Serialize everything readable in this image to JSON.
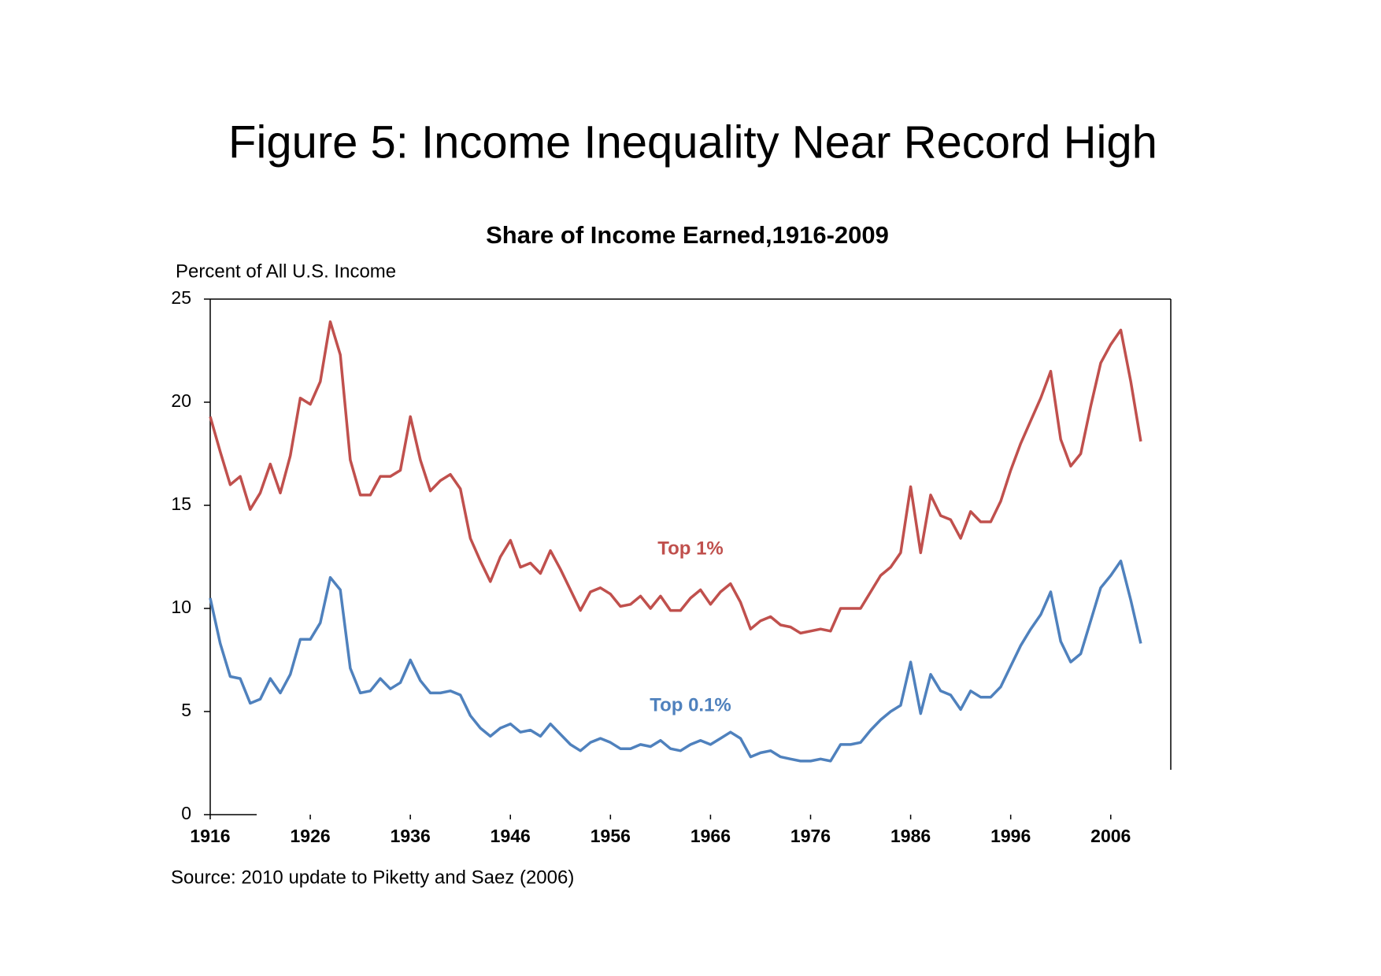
{
  "chart_data": {
    "type": "line",
    "title": "Figure 5: Income Inequality Near Record High",
    "subtitle": "Share of Income Earned,1916-2009",
    "y_label": "Percent of All U.S. Income",
    "source": "Source: 2010 update to Piketty and Saez (2006)",
    "x": [
      1916,
      1917,
      1918,
      1919,
      1920,
      1921,
      1922,
      1923,
      1924,
      1925,
      1926,
      1927,
      1928,
      1929,
      1930,
      1931,
      1932,
      1933,
      1934,
      1935,
      1936,
      1937,
      1938,
      1939,
      1940,
      1941,
      1942,
      1943,
      1944,
      1945,
      1946,
      1947,
      1948,
      1949,
      1950,
      1951,
      1952,
      1953,
      1954,
      1955,
      1956,
      1957,
      1958,
      1959,
      1960,
      1961,
      1962,
      1963,
      1964,
      1965,
      1966,
      1967,
      1968,
      1969,
      1970,
      1971,
      1972,
      1973,
      1974,
      1975,
      1976,
      1977,
      1978,
      1979,
      1980,
      1981,
      1982,
      1983,
      1984,
      1985,
      1986,
      1987,
      1988,
      1989,
      1990,
      1991,
      1992,
      1993,
      1994,
      1995,
      1996,
      1997,
      1998,
      1999,
      2000,
      2001,
      2002,
      2003,
      2004,
      2005,
      2006,
      2007,
      2008,
      2009
    ],
    "series": [
      {
        "name": "Top 1%",
        "color": "#c0504d",
        "values": [
          19.3,
          17.6,
          16.0,
          16.4,
          14.8,
          15.6,
          17.0,
          15.6,
          17.4,
          20.2,
          19.9,
          21.0,
          23.9,
          22.3,
          17.2,
          15.5,
          15.5,
          16.4,
          16.4,
          16.7,
          19.3,
          17.2,
          15.7,
          16.2,
          16.5,
          15.8,
          13.4,
          12.3,
          11.3,
          12.5,
          13.3,
          12.0,
          12.2,
          11.7,
          12.8,
          11.9,
          10.9,
          9.9,
          10.8,
          11.0,
          10.7,
          10.1,
          10.2,
          10.6,
          10.0,
          10.6,
          9.9,
          9.9,
          10.5,
          10.9,
          10.2,
          10.8,
          11.2,
          10.3,
          9.0,
          9.4,
          9.6,
          9.2,
          9.1,
          8.8,
          8.9,
          9.0,
          8.9,
          10.0,
          10.0,
          10.0,
          10.8,
          11.6,
          12.0,
          12.7,
          15.9,
          12.7,
          15.5,
          14.5,
          14.3,
          13.4,
          14.7,
          14.2,
          14.2,
          15.2,
          16.7,
          18.0,
          19.1,
          20.2,
          21.5,
          18.2,
          16.9,
          17.5,
          19.8,
          21.9,
          22.8,
          23.5,
          21.0,
          18.1
        ]
      },
      {
        "name": "Top 0.1%",
        "color": "#4f81bd",
        "values": [
          10.5,
          8.3,
          6.7,
          6.6,
          5.4,
          5.6,
          6.6,
          5.9,
          6.8,
          8.5,
          8.5,
          9.3,
          11.5,
          10.9,
          7.1,
          5.9,
          6.0,
          6.6,
          6.1,
          6.4,
          7.5,
          6.5,
          5.9,
          5.9,
          6.0,
          5.8,
          4.8,
          4.2,
          3.8,
          4.2,
          4.4,
          4.0,
          4.1,
          3.8,
          4.4,
          3.9,
          3.4,
          3.1,
          3.5,
          3.7,
          3.5,
          3.2,
          3.2,
          3.4,
          3.3,
          3.6,
          3.2,
          3.1,
          3.4,
          3.6,
          3.4,
          3.7,
          4.0,
          3.7,
          2.8,
          3.0,
          3.1,
          2.8,
          2.7,
          2.6,
          2.6,
          2.7,
          2.6,
          3.4,
          3.4,
          3.5,
          4.1,
          4.6,
          5.0,
          5.3,
          7.4,
          4.9,
          6.8,
          6.0,
          5.8,
          5.1,
          6.0,
          5.7,
          5.7,
          6.2,
          7.2,
          8.2,
          9.0,
          9.7,
          10.8,
          8.4,
          7.4,
          7.8,
          9.4,
          11.0,
          11.6,
          12.3,
          10.4,
          8.3
        ]
      }
    ],
    "xlim": [
      1916,
      2012
    ],
    "xticks": [
      1916,
      1926,
      1936,
      1946,
      1956,
      1966,
      1976,
      1986,
      1996,
      2006
    ],
    "ylim": [
      0,
      25
    ],
    "yticks": [
      0,
      5,
      10,
      15,
      20,
      25
    ]
  }
}
